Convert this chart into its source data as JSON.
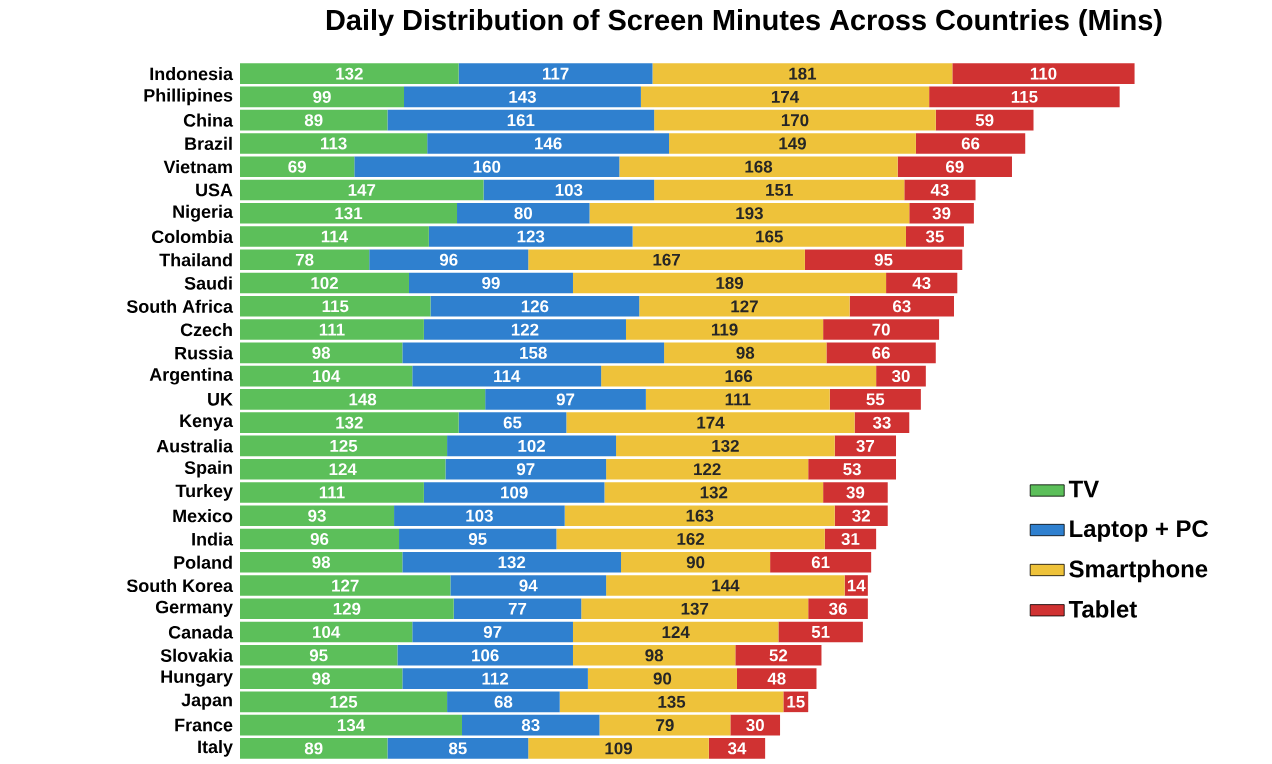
{
  "chart_data": {
    "type": "bar",
    "orientation": "horizontal",
    "stacked": true,
    "data_labels": true,
    "title": "Daily Distribution of Screen Minutes Across Countries (Mins)",
    "categories": [
      "Indonesia",
      "Phillipines",
      "China",
      "Brazil",
      "Vietnam",
      "USA",
      "Nigeria",
      "Colombia",
      "Thailand",
      "Saudi",
      "South Africa",
      "Czech",
      "Russia",
      "Argentina",
      "UK",
      "Kenya",
      "Australia",
      "Spain",
      "Turkey",
      "Mexico",
      "India",
      "Poland",
      "South Korea",
      "Germany",
      "Canada",
      "Slovakia",
      "Hungary",
      "Japan",
      "France",
      "Italy"
    ],
    "series": [
      {
        "name": "TV",
        "color": "#5cbf5a",
        "values": [
          132,
          99,
          89,
          113,
          69,
          147,
          131,
          114,
          78,
          102,
          115,
          111,
          98,
          104,
          148,
          132,
          125,
          124,
          111,
          93,
          96,
          98,
          127,
          129,
          104,
          95,
          98,
          125,
          134,
          89
        ]
      },
      {
        "name": "Laptop + PC",
        "color": "#2f80cf",
        "values": [
          117,
          143,
          161,
          146,
          160,
          103,
          80,
          123,
          96,
          99,
          126,
          122,
          158,
          114,
          97,
          65,
          102,
          97,
          109,
          103,
          95,
          132,
          94,
          77,
          97,
          106,
          112,
          68,
          83,
          85
        ]
      },
      {
        "name": "Smartphone",
        "color": "#eec23a",
        "values": [
          181,
          174,
          170,
          149,
          168,
          151,
          193,
          165,
          167,
          189,
          127,
          119,
          98,
          166,
          111,
          174,
          132,
          122,
          132,
          163,
          162,
          90,
          144,
          137,
          124,
          98,
          90,
          135,
          79,
          109
        ]
      },
      {
        "name": "Tablet",
        "color": "#d03232",
        "values": [
          110,
          115,
          59,
          66,
          69,
          43,
          39,
          35,
          95,
          43,
          63,
          70,
          66,
          30,
          55,
          33,
          37,
          53,
          39,
          32,
          31,
          61,
          14,
          36,
          51,
          52,
          48,
          15,
          30,
          34
        ]
      }
    ],
    "tick_labels": "y",
    "legend": "right"
  }
}
